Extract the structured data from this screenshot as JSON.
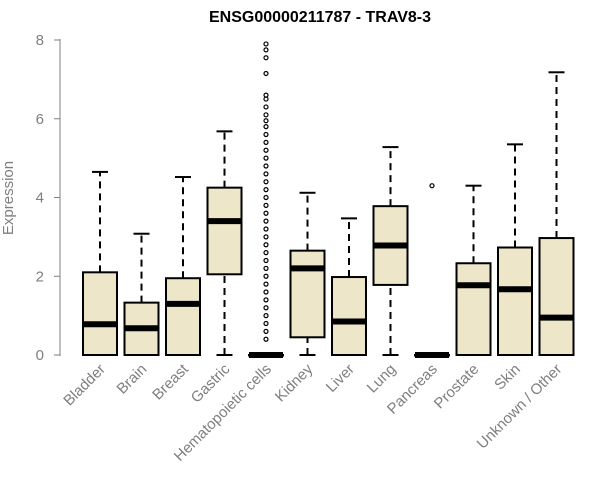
{
  "chart_data": {
    "type": "box",
    "title": "ENSG00000211787 - TRAV8-3",
    "ylabel": "Expression",
    "xlabel": "",
    "ylim": [
      0,
      8
    ],
    "yticks": [
      "0",
      "2",
      "4",
      "6",
      "8"
    ],
    "box_fill": "#ede6c9",
    "categories": [
      "Bladder",
      "Brain",
      "Breast",
      "Gastric",
      "Hematopoietic cells",
      "Kidney",
      "Liver",
      "Lung",
      "Pancreas",
      "Prostate",
      "Skin",
      "Unknown / Other"
    ],
    "boxes": [
      {
        "min": 0,
        "q1": 0,
        "median": 0.78,
        "q3": 2.1,
        "max": 4.65,
        "outliers": []
      },
      {
        "min": 0,
        "q1": 0,
        "median": 0.68,
        "q3": 1.33,
        "max": 3.08,
        "outliers": []
      },
      {
        "min": 0,
        "q1": 0,
        "median": 1.3,
        "q3": 1.95,
        "max": 4.52,
        "outliers": []
      },
      {
        "min": 0,
        "q1": 2.05,
        "median": 3.4,
        "q3": 4.25,
        "max": 5.68,
        "outliers": []
      },
      {
        "min": 0,
        "q1": 0,
        "median": 0,
        "q3": 0,
        "max": 0,
        "outliers": [
          7.9,
          7.75,
          7.55,
          7.15,
          6.6,
          6.5,
          6.3,
          6.1,
          5.95,
          5.8,
          5.6,
          5.4,
          5.2,
          5.0,
          4.8,
          4.6,
          4.4,
          4.2,
          4.0,
          3.8,
          3.6,
          3.4,
          3.2,
          3.0,
          2.8,
          2.6,
          2.4,
          2.2,
          2.0,
          1.8,
          1.6,
          1.4,
          1.2,
          1.0,
          0.8,
          0.6,
          0.4
        ]
      },
      {
        "min": 0,
        "q1": 0.45,
        "median": 2.2,
        "q3": 2.65,
        "max": 4.12,
        "outliers": []
      },
      {
        "min": 0,
        "q1": 0,
        "median": 0.85,
        "q3": 1.98,
        "max": 3.47,
        "outliers": []
      },
      {
        "min": 0,
        "q1": 1.78,
        "median": 2.78,
        "q3": 3.78,
        "max": 5.28,
        "outliers": []
      },
      {
        "min": 0,
        "q1": 0,
        "median": 0,
        "q3": 0,
        "max": 0,
        "outliers": [
          4.3
        ]
      },
      {
        "min": 0,
        "q1": 0,
        "median": 1.77,
        "q3": 2.33,
        "max": 4.3,
        "outliers": []
      },
      {
        "min": 0,
        "q1": 0,
        "median": 1.67,
        "q3": 2.73,
        "max": 5.35,
        "outliers": []
      },
      {
        "min": 0,
        "q1": 0,
        "median": 0.95,
        "q3": 2.97,
        "max": 7.18,
        "outliers": []
      }
    ]
  }
}
